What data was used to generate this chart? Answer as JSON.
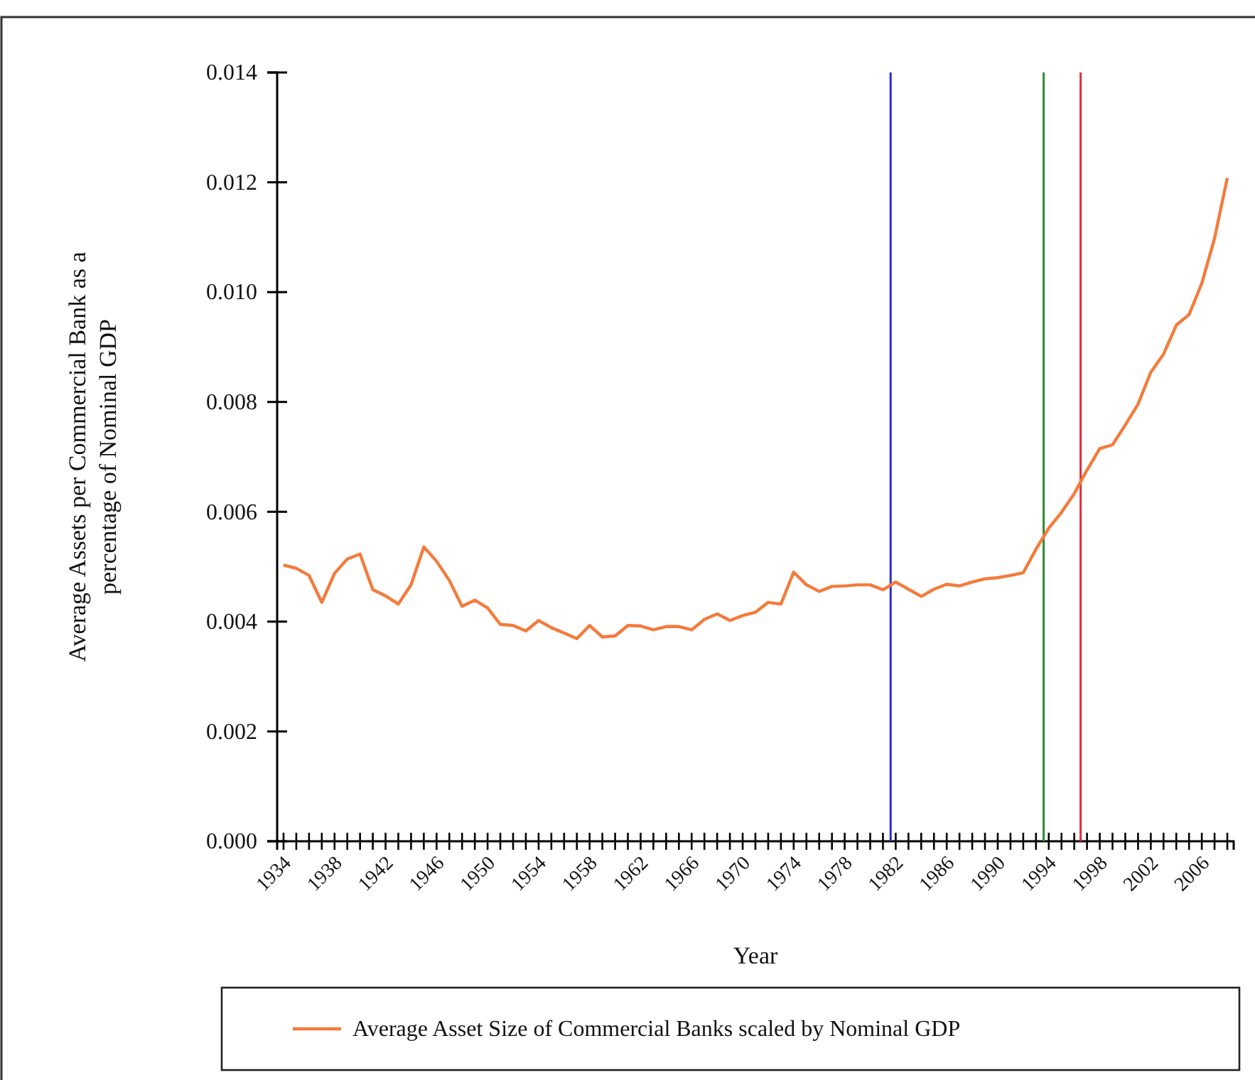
{
  "chart_data": {
    "type": "line",
    "xlabel": "Year",
    "ylabel": "Average Assets per Commercial Bank as a percentage of Nominal GDP",
    "x": [
      1934,
      1935,
      1936,
      1937,
      1938,
      1939,
      1940,
      1941,
      1942,
      1943,
      1944,
      1945,
      1946,
      1947,
      1948,
      1949,
      1950,
      1951,
      1952,
      1953,
      1954,
      1955,
      1956,
      1957,
      1958,
      1959,
      1960,
      1961,
      1962,
      1963,
      1964,
      1965,
      1966,
      1967,
      1968,
      1969,
      1970,
      1971,
      1972,
      1973,
      1974,
      1975,
      1976,
      1977,
      1978,
      1979,
      1980,
      1981,
      1982,
      1983,
      1984,
      1985,
      1986,
      1987,
      1988,
      1989,
      1990,
      1991,
      1992,
      1993,
      1994,
      1995,
      1996,
      1997,
      1998,
      1999,
      2000,
      2001,
      2002,
      2003,
      2004,
      2005,
      2006,
      2007,
      2008
    ],
    "series": [
      {
        "name": "Average Asset Size of Commercial Banks scaled by Nominal GDP",
        "color": "#f47b3c",
        "values": [
          0.00503,
          0.00497,
          0.00484,
          0.00435,
          0.00488,
          0.00514,
          0.00523,
          0.00458,
          0.00447,
          0.00432,
          0.00467,
          0.00536,
          0.0051,
          0.00475,
          0.00428,
          0.00439,
          0.00425,
          0.00395,
          0.00393,
          0.00383,
          0.00402,
          0.00389,
          0.00379,
          0.00369,
          0.00393,
          0.00372,
          0.00374,
          0.00393,
          0.00392,
          0.00385,
          0.00391,
          0.00391,
          0.00385,
          0.00404,
          0.00414,
          0.00402,
          0.00411,
          0.00417,
          0.00435,
          0.00432,
          0.0049,
          0.00467,
          0.00455,
          0.00464,
          0.00465,
          0.00467,
          0.00467,
          0.00458,
          0.00472,
          0.00459,
          0.00446,
          0.00459,
          0.00468,
          0.00465,
          0.00472,
          0.00478,
          0.0048,
          0.00484,
          0.00489,
          0.00532,
          0.0057,
          0.00599,
          0.00633,
          0.00676,
          0.00715,
          0.00722,
          0.00758,
          0.00796,
          0.00854,
          0.00887,
          0.0094,
          0.00959,
          0.01016,
          0.01098,
          0.01208
        ]
      }
    ],
    "xlim": [
      1933.5,
      2008.5
    ],
    "xticks": [
      1934,
      {
        "value": 1935,
        "label": null
      },
      {
        "value": 1936,
        "label": null
      },
      {
        "value": 1937,
        "label": null
      },
      1938,
      {
        "value": 1939,
        "label": null
      },
      {
        "value": 1940,
        "label": null
      },
      {
        "value": 1941,
        "label": null
      },
      1942,
      {
        "value": 1943,
        "label": null
      },
      {
        "value": 1944,
        "label": null
      },
      {
        "value": 1945,
        "label": null
      },
      1946,
      {
        "value": 1947,
        "label": null
      },
      {
        "value": 1948,
        "label": null
      },
      {
        "value": 1949,
        "label": null
      },
      1950,
      {
        "value": 1951,
        "label": null
      },
      {
        "value": 1952,
        "label": null
      },
      {
        "value": 1953,
        "label": null
      },
      1954,
      {
        "value": 1955,
        "label": null
      },
      {
        "value": 1956,
        "label": null
      },
      {
        "value": 1957,
        "label": null
      },
      1958,
      {
        "value": 1959,
        "label": null
      },
      {
        "value": 1960,
        "label": null
      },
      {
        "value": 1961,
        "label": null
      },
      1962,
      {
        "value": 1963,
        "label": null
      },
      {
        "value": 1964,
        "label": null
      },
      {
        "value": 1965,
        "label": null
      },
      1966,
      {
        "value": 1967,
        "label": null
      },
      {
        "value": 1968,
        "label": null
      },
      {
        "value": 1969,
        "label": null
      },
      1970,
      {
        "value": 1971,
        "label": null
      },
      {
        "value": 1972,
        "label": null
      },
      {
        "value": 1973,
        "label": null
      },
      1974,
      {
        "value": 1975,
        "label": null
      },
      {
        "value": 1976,
        "label": null
      },
      {
        "value": 1977,
        "label": null
      },
      1978,
      {
        "value": 1979,
        "label": null
      },
      {
        "value": 1980,
        "label": null
      },
      {
        "value": 1981,
        "label": null
      },
      1982,
      {
        "value": 1983,
        "label": null
      },
      {
        "value": 1984,
        "label": null
      },
      {
        "value": 1985,
        "label": null
      },
      1986,
      {
        "value": 1987,
        "label": null
      },
      {
        "value": 1988,
        "label": null
      },
      {
        "value": 1989,
        "label": null
      },
      1990,
      {
        "value": 1991,
        "label": null
      },
      {
        "value": 1992,
        "label": null
      },
      {
        "value": 1993,
        "label": null
      },
      1994,
      {
        "value": 1995,
        "label": null
      },
      {
        "value": 1996,
        "label": null
      },
      {
        "value": 1997,
        "label": null
      },
      1998,
      {
        "value": 1999,
        "label": null
      },
      {
        "value": 2000,
        "label": null
      },
      {
        "value": 2001,
        "label": null
      },
      2002,
      {
        "value": 2003,
        "label": null
      },
      {
        "value": 2004,
        "label": null
      },
      {
        "value": 2005,
        "label": null
      },
      2006,
      {
        "value": 2007,
        "label": null
      },
      {
        "value": 2008,
        "label": null
      }
    ],
    "ylim": [
      0,
      0.014
    ],
    "yticks": [
      {
        "value": 0,
        "label": "0.000"
      },
      {
        "value": 0.002,
        "label": "0.002"
      },
      {
        "value": 0.004,
        "label": "0.004"
      },
      {
        "value": 0.006,
        "label": "0.006"
      },
      {
        "value": 0.008,
        "label": "0.008"
      },
      {
        "value": 0.01,
        "label": "0.010"
      },
      {
        "value": 0.012,
        "label": "0.012"
      },
      {
        "value": 0.014,
        "label": "0.014"
      }
    ],
    "ref_lines": [
      {
        "axis": "x",
        "value": 1981.6,
        "color": "#2b2bd9"
      },
      {
        "axis": "x",
        "value": 1993.6,
        "color": "#2e8b2e"
      },
      {
        "axis": "x",
        "value": 1996.5,
        "color": "#e8283a"
      }
    ],
    "grid": false,
    "legend": "bottom",
    "marker": "none",
    "line_style": "solid"
  }
}
